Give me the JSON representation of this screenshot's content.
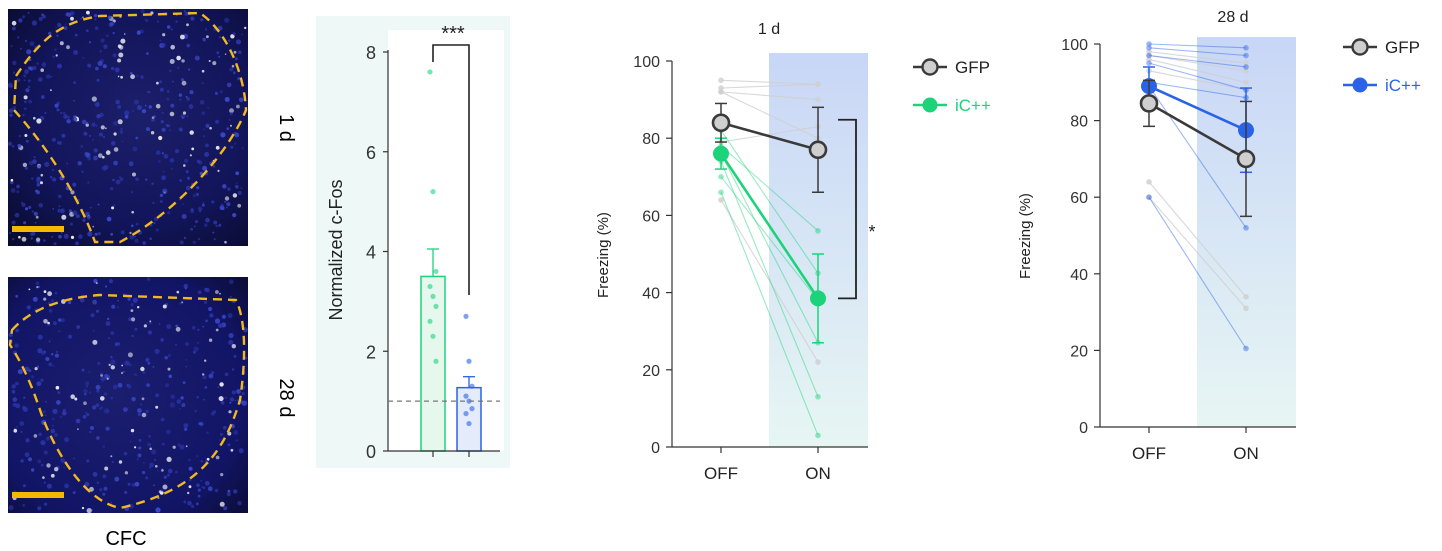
{
  "micrographs": {
    "row_labels": [
      "1 d",
      "28 d"
    ],
    "caption": "CFC"
  },
  "colors": {
    "gfp": "#3a3a3a",
    "gfp_fill": "#cfcfcf",
    "ic_green": "#1dd37a",
    "ic_blue": "#2a63e8",
    "panel_shade_top": "#c8d6f7",
    "panel_shade_bottom": "#e7f6f3",
    "outline": "#f1b81f"
  },
  "chart_data": [
    {
      "type": "bar",
      "ylabel": "Normalized c-Fos",
      "ylim": [
        0,
        8
      ],
      "yticks": [
        0,
        2,
        4,
        6,
        8
      ],
      "categories": [
        "",
        ""
      ],
      "series": [
        {
          "values": [
            3.5,
            1.27
          ],
          "sem": [
            0.55,
            0.22
          ]
        }
      ],
      "points": [
        [
          7.6,
          5.2,
          3.6,
          3.3,
          3.1,
          2.9,
          2.6,
          2.3,
          1.8
        ],
        [
          2.7,
          1.8,
          1.3,
          1.1,
          1.0,
          0.85,
          0.75,
          0.55
        ]
      ],
      "reference_line": 1,
      "annotation": "***"
    },
    {
      "type": "line",
      "title": "1 d",
      "ylabel": "Freezing (%)",
      "ylim": [
        0,
        100
      ],
      "yticks": [
        0,
        20,
        40,
        60,
        80,
        100
      ],
      "categories": [
        "OFF",
        "ON"
      ],
      "series": [
        {
          "name": "GFP",
          "values": [
            84,
            77
          ],
          "sem": [
            5,
            11
          ]
        },
        {
          "name": "iC++",
          "values": [
            76,
            38.5
          ],
          "sem": [
            4,
            11.5
          ]
        }
      ],
      "individual": {
        "GFP": [
          [
            95,
            94
          ],
          [
            93,
            94
          ],
          [
            92,
            90
          ],
          [
            92,
            80
          ],
          [
            79,
            83
          ],
          [
            64,
            22
          ]
        ],
        "iC++": [
          [
            82,
            45
          ],
          [
            78,
            56
          ],
          [
            76,
            27
          ],
          [
            74,
            13
          ],
          [
            70,
            38
          ],
          [
            66,
            3
          ]
        ]
      },
      "annotation": "*"
    },
    {
      "type": "line",
      "title": "28 d",
      "ylabel": "Freezing (%)",
      "ylim": [
        0,
        100
      ],
      "yticks": [
        0,
        20,
        40,
        60,
        80,
        100
      ],
      "categories": [
        "OFF",
        "ON"
      ],
      "series": [
        {
          "name": "GFP",
          "values": [
            84.5,
            70
          ],
          "sem": [
            6,
            15
          ]
        },
        {
          "name": "iC++",
          "values": [
            89,
            77.5
          ],
          "sem": [
            5,
            11
          ]
        }
      ],
      "individual": {
        "GFP": [
          [
            98,
            95
          ],
          [
            97,
            93
          ],
          [
            96,
            90
          ],
          [
            93,
            88
          ],
          [
            64,
            34
          ],
          [
            60,
            31
          ]
        ],
        "iC++": [
          [
            100,
            99
          ],
          [
            99,
            97
          ],
          [
            97,
            94
          ],
          [
            95,
            88
          ],
          [
            90,
            86
          ],
          [
            89,
            52
          ],
          [
            60,
            20.5
          ]
        ]
      },
      "annotation": ""
    }
  ]
}
